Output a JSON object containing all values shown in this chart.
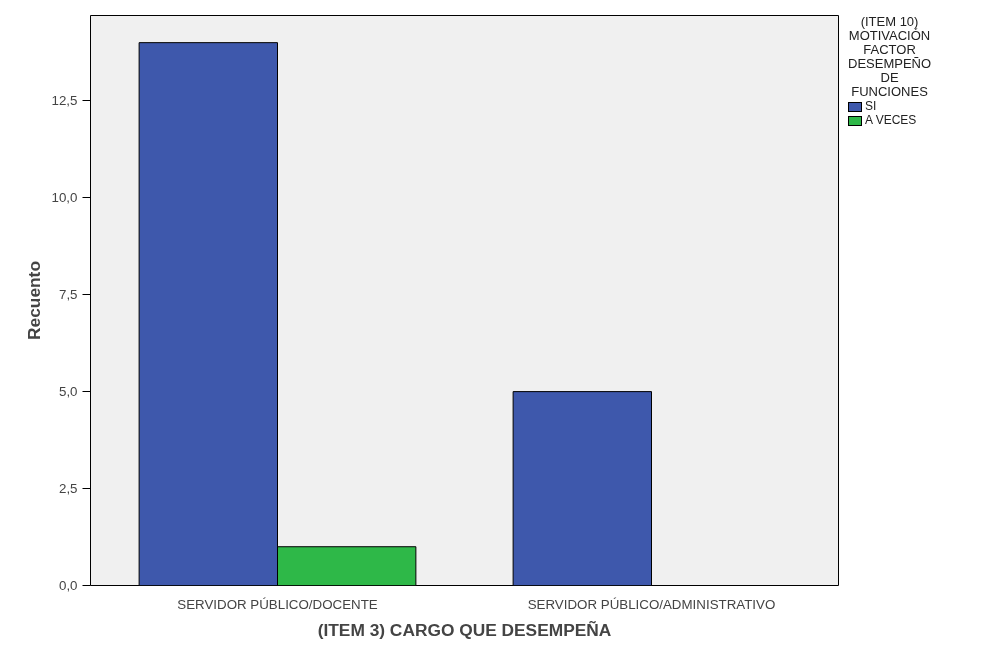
{
  "chart_data": {
    "type": "bar",
    "xlabel": "(ITEM 3) CARGO QUE DESEMPEÑA",
    "ylabel": "Recuento",
    "legend_title": "(ITEM 10) MOTIVACIÓN FACTOR DESEMPEÑO DE FUNCIONES",
    "categories": [
      "SERVIDOR PÚBLICO/DOCENTE",
      "SERVIDOR PÚBLICO/ADMINISTRATIVO"
    ],
    "series": [
      {
        "name": "SI",
        "color": "#3e58ac",
        "values": [
          14,
          5
        ]
      },
      {
        "name": "A VECES",
        "color": "#2eb848",
        "values": [
          1,
          null
        ]
      }
    ],
    "ylim": [
      0,
      14.7
    ],
    "yticks": [
      {
        "value": 0,
        "label": "0,0"
      },
      {
        "value": 2.5,
        "label": "2,5"
      },
      {
        "value": 5,
        "label": "5,0"
      },
      {
        "value": 7.5,
        "label": "7,5"
      },
      {
        "value": 10,
        "label": "10,0"
      },
      {
        "value": 12.5,
        "label": "12,5"
      }
    ],
    "grid": false,
    "legend": "right"
  }
}
